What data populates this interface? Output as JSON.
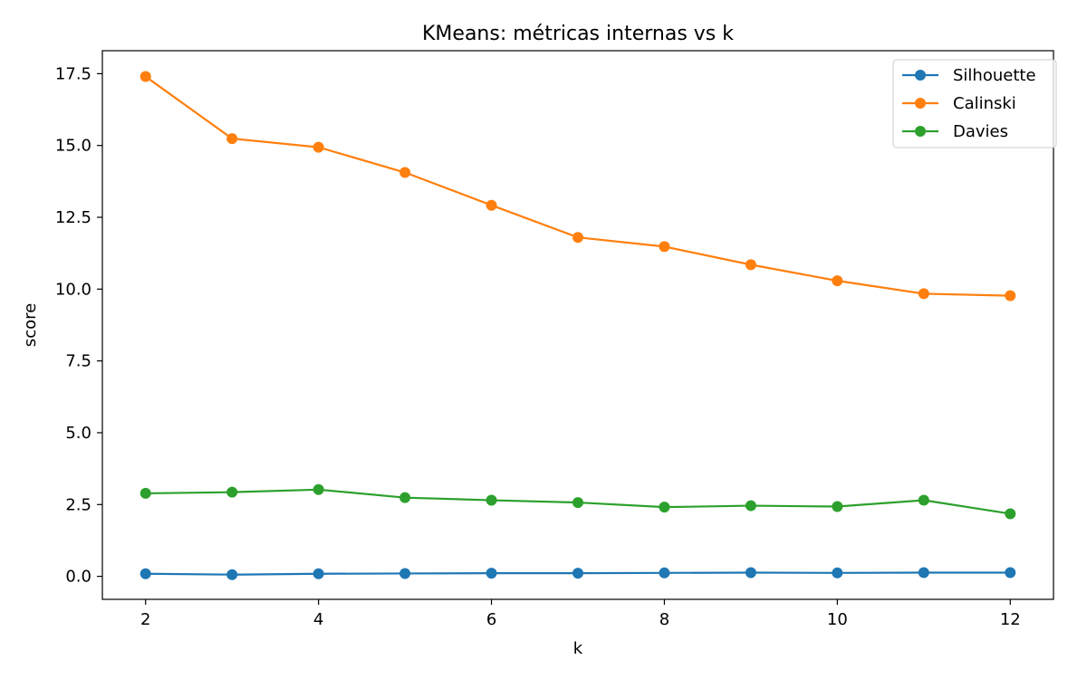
{
  "chart_data": {
    "type": "line",
    "title": "KMeans: métricas internas vs k",
    "xlabel": "k",
    "ylabel": "score",
    "xlim": [
      1.5,
      12.5
    ],
    "ylim": [
      -0.8,
      18.3
    ],
    "x_ticks": [
      2,
      4,
      6,
      8,
      10,
      12
    ],
    "y_ticks": [
      0.0,
      2.5,
      5.0,
      7.5,
      10.0,
      12.5,
      15.0,
      17.5
    ],
    "x": [
      2,
      3,
      4,
      5,
      6,
      7,
      8,
      9,
      10,
      11,
      12
    ],
    "legend_position": "top-right",
    "grid": false,
    "series": [
      {
        "name": "Silhouette",
        "color": "#1f77b4",
        "values": [
          0.09,
          0.06,
          0.09,
          0.1,
          0.11,
          0.11,
          0.12,
          0.13,
          0.12,
          0.13,
          0.13
        ]
      },
      {
        "name": "Calinski",
        "color": "#ff7f0e",
        "values": [
          17.4,
          15.24,
          14.94,
          14.06,
          12.92,
          11.8,
          11.48,
          10.85,
          10.29,
          9.84,
          9.77
        ]
      },
      {
        "name": "Davies",
        "color": "#2ca02c",
        "values": [
          2.89,
          2.93,
          3.02,
          2.74,
          2.65,
          2.57,
          2.41,
          2.46,
          2.43,
          2.65,
          2.18
        ]
      }
    ]
  }
}
